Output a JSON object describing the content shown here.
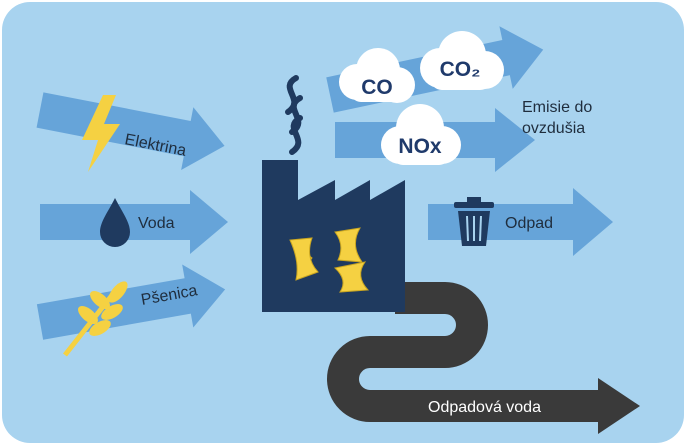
{
  "inputs": [
    "Elektrina",
    "Voda",
    "Pšenica"
  ],
  "emissions": {
    "gases": [
      "CO",
      "CO₂",
      "NOx"
    ],
    "label": [
      "Emisie do",
      "ovzdušia"
    ]
  },
  "outputs": {
    "waste": "Odpad",
    "wastewater": "Odpadová voda"
  }
}
